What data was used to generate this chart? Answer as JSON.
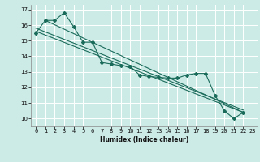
{
  "xlabel": "Humidex (Indice chaleur)",
  "bg_color": "#cceae6",
  "grid_color": "#ffffff",
  "line_color": "#1a6b5a",
  "xlim": [
    -0.5,
    23.5
  ],
  "ylim": [
    9.5,
    17.3
  ],
  "yticks": [
    10,
    11,
    12,
    13,
    14,
    15,
    16,
    17
  ],
  "xticks": [
    0,
    1,
    2,
    3,
    4,
    5,
    6,
    7,
    8,
    9,
    10,
    11,
    12,
    13,
    14,
    15,
    16,
    17,
    18,
    19,
    20,
    21,
    22,
    23
  ],
  "series1_x": [
    0,
    1,
    2,
    3,
    4,
    5,
    6,
    7,
    8,
    9,
    10,
    11,
    12,
    13,
    14,
    15,
    16,
    17,
    18,
    19,
    20,
    21,
    22
  ],
  "series1_y": [
    15.5,
    16.3,
    16.3,
    16.8,
    15.9,
    14.9,
    14.9,
    13.6,
    13.5,
    13.4,
    13.35,
    12.8,
    12.7,
    12.65,
    12.6,
    12.6,
    12.8,
    12.9,
    12.9,
    11.5,
    10.5,
    10.0,
    10.4
  ],
  "line2_x": [
    0,
    22
  ],
  "line2_y": [
    15.6,
    10.4
  ],
  "line3_x": [
    0,
    22
  ],
  "line3_y": [
    15.8,
    10.55
  ],
  "line4_x": [
    1,
    22
  ],
  "line4_y": [
    16.3,
    10.4
  ],
  "xlabel_fontsize": 5.5,
  "tick_fontsize": 5.0,
  "linewidth": 0.8,
  "markersize": 2.0
}
